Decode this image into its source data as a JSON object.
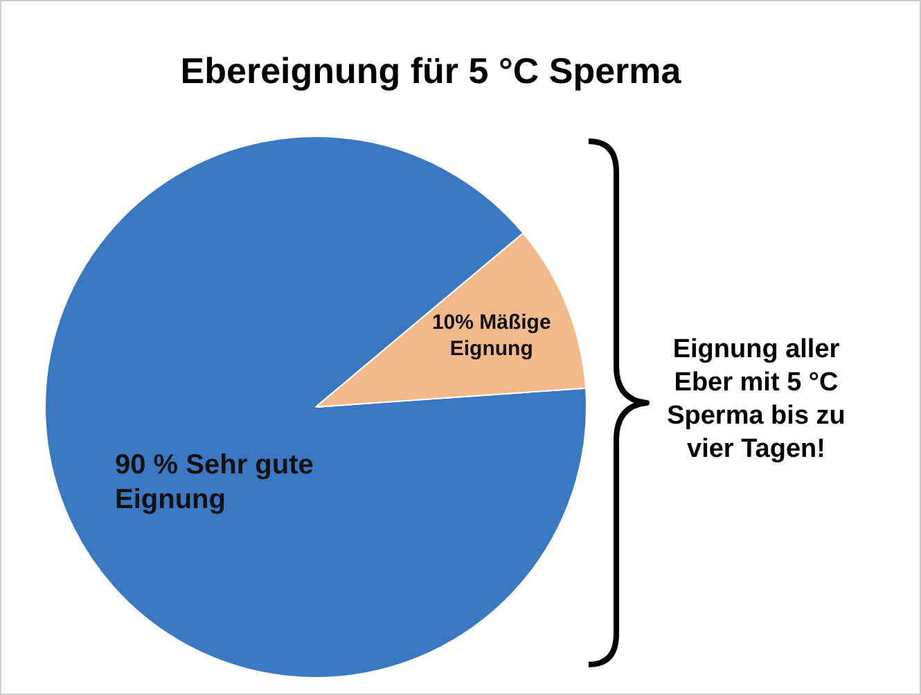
{
  "chart_data": {
    "type": "pie",
    "title": "Ebereignung für 5 °C Sperma",
    "categories": [
      "Sehr gute Eignung",
      "Mäßige Eignung"
    ],
    "values": [
      90,
      10
    ],
    "colors": [
      "#3b78c4",
      "#f2b98b"
    ],
    "value_labels": [
      "90 %",
      "10%"
    ],
    "legend": false,
    "annotations": [
      "Eignung aller Eber mit 5 °C Sperma bis zu vier Tagen!"
    ]
  }
}
